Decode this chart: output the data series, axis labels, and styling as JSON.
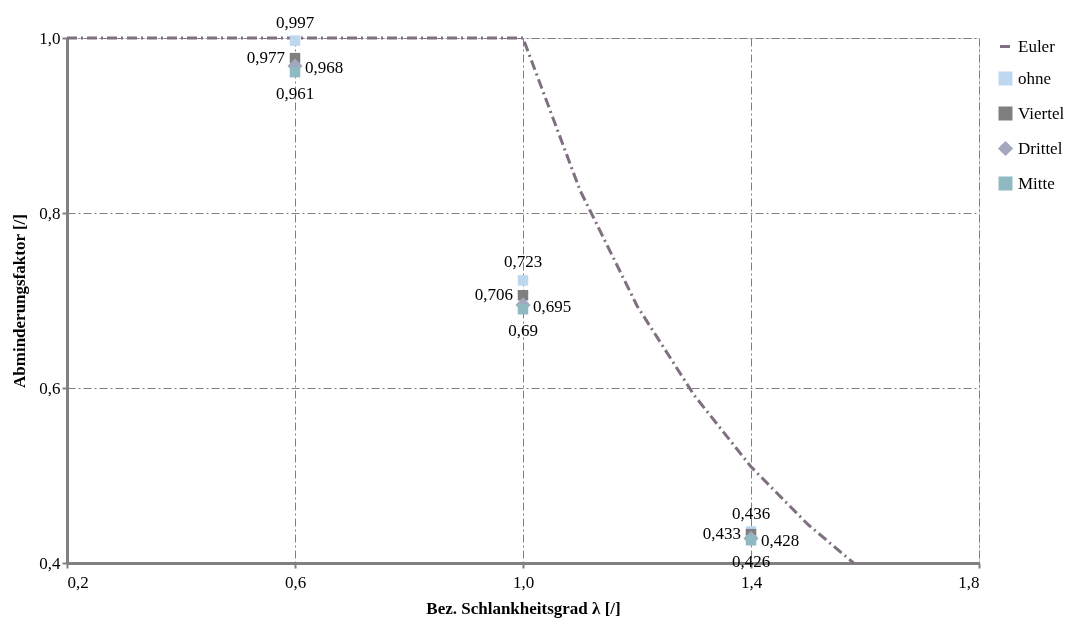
{
  "chart_data": {
    "type": "scatter",
    "xlabel": "Bez. Schlankheitsgrad   λ   [/]",
    "ylabel": "Abminderungsfaktor  [/]",
    "x": [
      0.6,
      1.0,
      1.4
    ],
    "xlim": [
      0.2,
      1.8
    ],
    "ylim": [
      0.4,
      1.0
    ],
    "xticks": [
      {
        "value": 0.2,
        "label": "0,2"
      },
      {
        "value": 0.6,
        "label": "0,6"
      },
      {
        "value": 1.0,
        "label": "1,0"
      },
      {
        "value": 1.4,
        "label": "1,4"
      },
      {
        "value": 1.8,
        "label": "1,8"
      }
    ],
    "yticks": [
      {
        "value": 0.4,
        "label": "0,4"
      },
      {
        "value": 0.6,
        "label": "0,6"
      },
      {
        "value": 0.8,
        "label": "0,8"
      },
      {
        "value": 1.0,
        "label": "1,0"
      }
    ],
    "grid": true,
    "legend": "right",
    "series": [
      {
        "name": "Euler",
        "type": "line",
        "line_style": "dashed",
        "marker": "none",
        "color": "#7f6f80",
        "x": [
          0.2,
          0.4,
          0.6,
          0.8,
          1.0,
          1.1,
          1.2,
          1.3,
          1.4,
          1.5,
          1.58
        ],
        "values": [
          1.0,
          1.0,
          1.0,
          1.0,
          1.0,
          0.826,
          0.694,
          0.592,
          0.51,
          0.444,
          0.4
        ]
      },
      {
        "name": "ohne",
        "marker": "square",
        "color": "#bdd7ee",
        "values": [
          0.997,
          0.723,
          0.436
        ],
        "value_labels": [
          "0,997",
          "0,723",
          "0,436"
        ]
      },
      {
        "name": "Viertel",
        "marker": "square",
        "color": "#7f7f7f",
        "values": [
          0.977,
          0.706,
          0.433
        ],
        "value_labels": [
          "0,977",
          "0,706",
          "0,433"
        ]
      },
      {
        "name": "Drittel",
        "marker": "diamond",
        "color": "#a3a8c0",
        "values": [
          0.968,
          0.695,
          0.428
        ],
        "value_labels": [
          "0,968",
          "0,695",
          "0,428"
        ]
      },
      {
        "name": "Mitte",
        "marker": "square",
        "color": "#8fbac2",
        "values": [
          0.961,
          0.69,
          0.426
        ],
        "value_labels": [
          "0,961",
          "0,69",
          "0,426"
        ]
      }
    ]
  }
}
